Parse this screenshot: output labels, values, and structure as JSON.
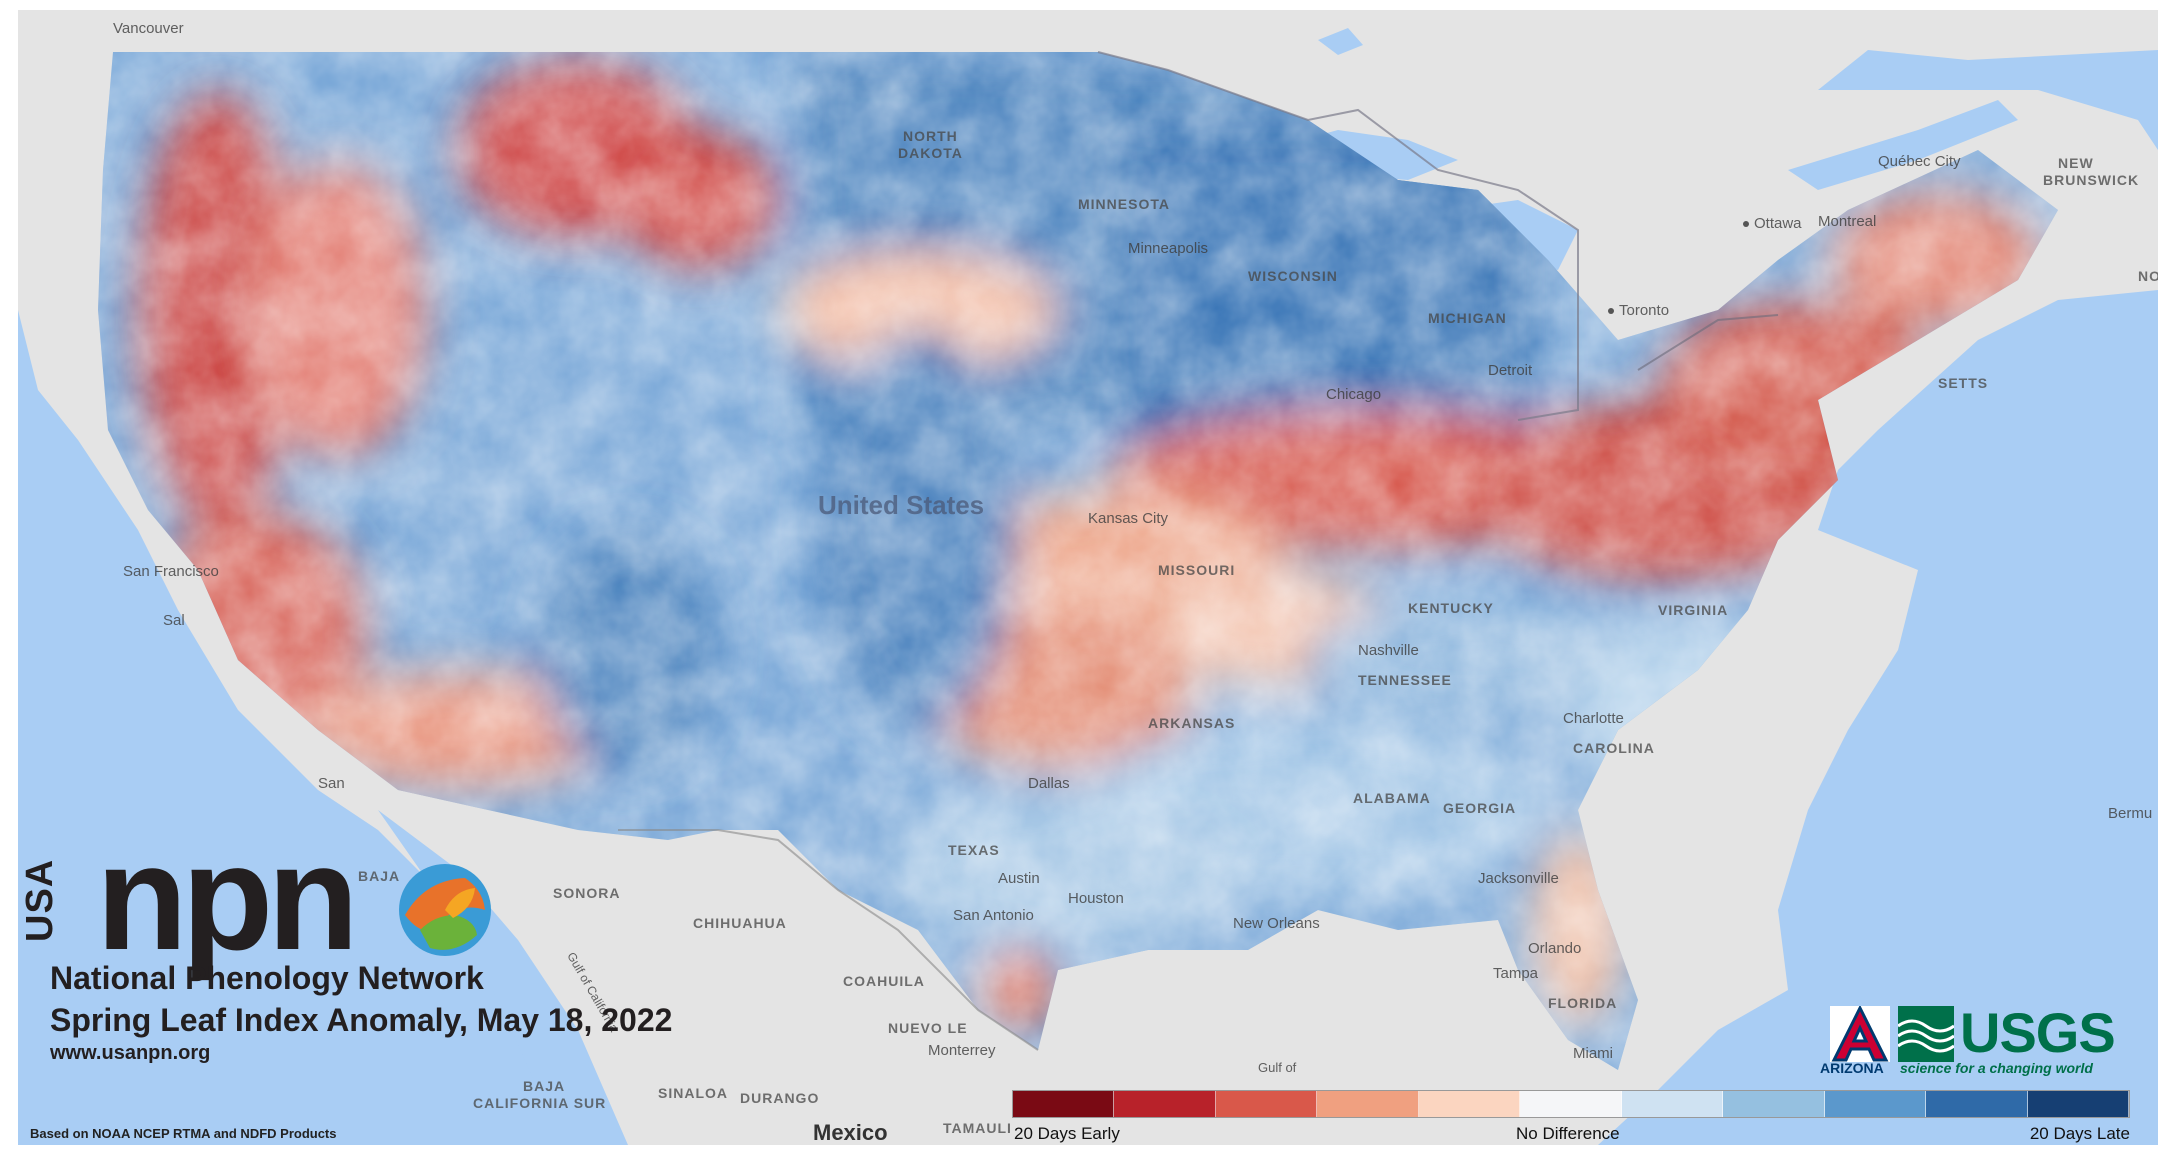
{
  "branding": {
    "usa": "USA",
    "npn": "npn",
    "network_name": "National Phenology Network",
    "map_title": "Spring Leaf Index Anomaly, May 18, 2022",
    "website": "www.usanpn.org",
    "source_note": "Based on NOAA NCEP RTMA and NDFD Products"
  },
  "partners": {
    "arizona_letter": "A",
    "arizona_name": "ARIZONA",
    "usgs_name": "USGS",
    "usgs_tagline": "science for a changing world"
  },
  "legend": {
    "left_label": "20 Days Early",
    "center_label": "No Difference",
    "right_label": "20 Days Late",
    "colors": [
      "#7a0a14",
      "#b8222a",
      "#d9584a",
      "#f0a080",
      "#fbd5c0",
      "#f5f6f8",
      "#cfe2f2",
      "#95c0e0",
      "#5b98cc",
      "#2f6aa8",
      "#163f73"
    ]
  },
  "map_labels": {
    "country_us": "United States",
    "country_mexico": "Mexico",
    "states": {
      "north_dakota_1": "NORTH",
      "north_dakota_2": "DAKOTA",
      "minnesota": "MINNESOTA",
      "wisconsin": "WISCONSIN",
      "michigan": "MICHIGAN",
      "missouri": "MISSOURI",
      "kentucky": "KENTUCKY",
      "tennessee": "TENNESSEE",
      "arkansas": "ARKANSAS",
      "alabama": "ALABAMA",
      "georgia": "GEORGIA",
      "texas": "TEXAS",
      "florida": "FLORIDA",
      "carolina": "CAROLINA",
      "virginia": "VIRGINIA",
      "massachusetts": "SETTS",
      "new_brunswick_1": "NEW",
      "new_brunswick_2": "BRUNSWICK",
      "sonora": "SONORA",
      "chihuahua": "CHIHUAHUA",
      "coahuila": "COAHUILA",
      "nuevo_leon": "NUEVO LE",
      "baja": "BAJA",
      "baja_cal_sur_1": "BAJA",
      "baja_cal_sur_2": "CALIFORNIA SUR",
      "sinaloa": "SINALOA",
      "durango": "DURANGO",
      "tamaulipas": "TAMAULI"
    },
    "cities": {
      "vancouver": "Vancouver",
      "minneapolis": "Minneapolis",
      "chicago": "Chicago",
      "detroit": "Detroit",
      "toronto": "Toronto",
      "ottawa": "Ottawa",
      "montreal": "Montreal",
      "quebec": "Québec City",
      "san_francisco": "San Francisco",
      "dallas": "Dallas",
      "houston": "Houston",
      "austin": "Austin",
      "san_antonio": "San Antonio",
      "new_orleans": "New Orleans",
      "jacksonville": "Jacksonville",
      "orlando": "Orlando",
      "tampa": "Tampa",
      "miami": "Miami",
      "nashville": "Nashville",
      "charlotte": "Charlotte",
      "monterrey": "Monterrey",
      "kansas_city": "Kansas City",
      "bermuda": "Bermu",
      "gulf_california": "Gulf of California",
      "gulf_mexico_1": "Gulf of",
      "san_1": "San",
      "sal": "Sal",
      "no": "NO"
    }
  }
}
